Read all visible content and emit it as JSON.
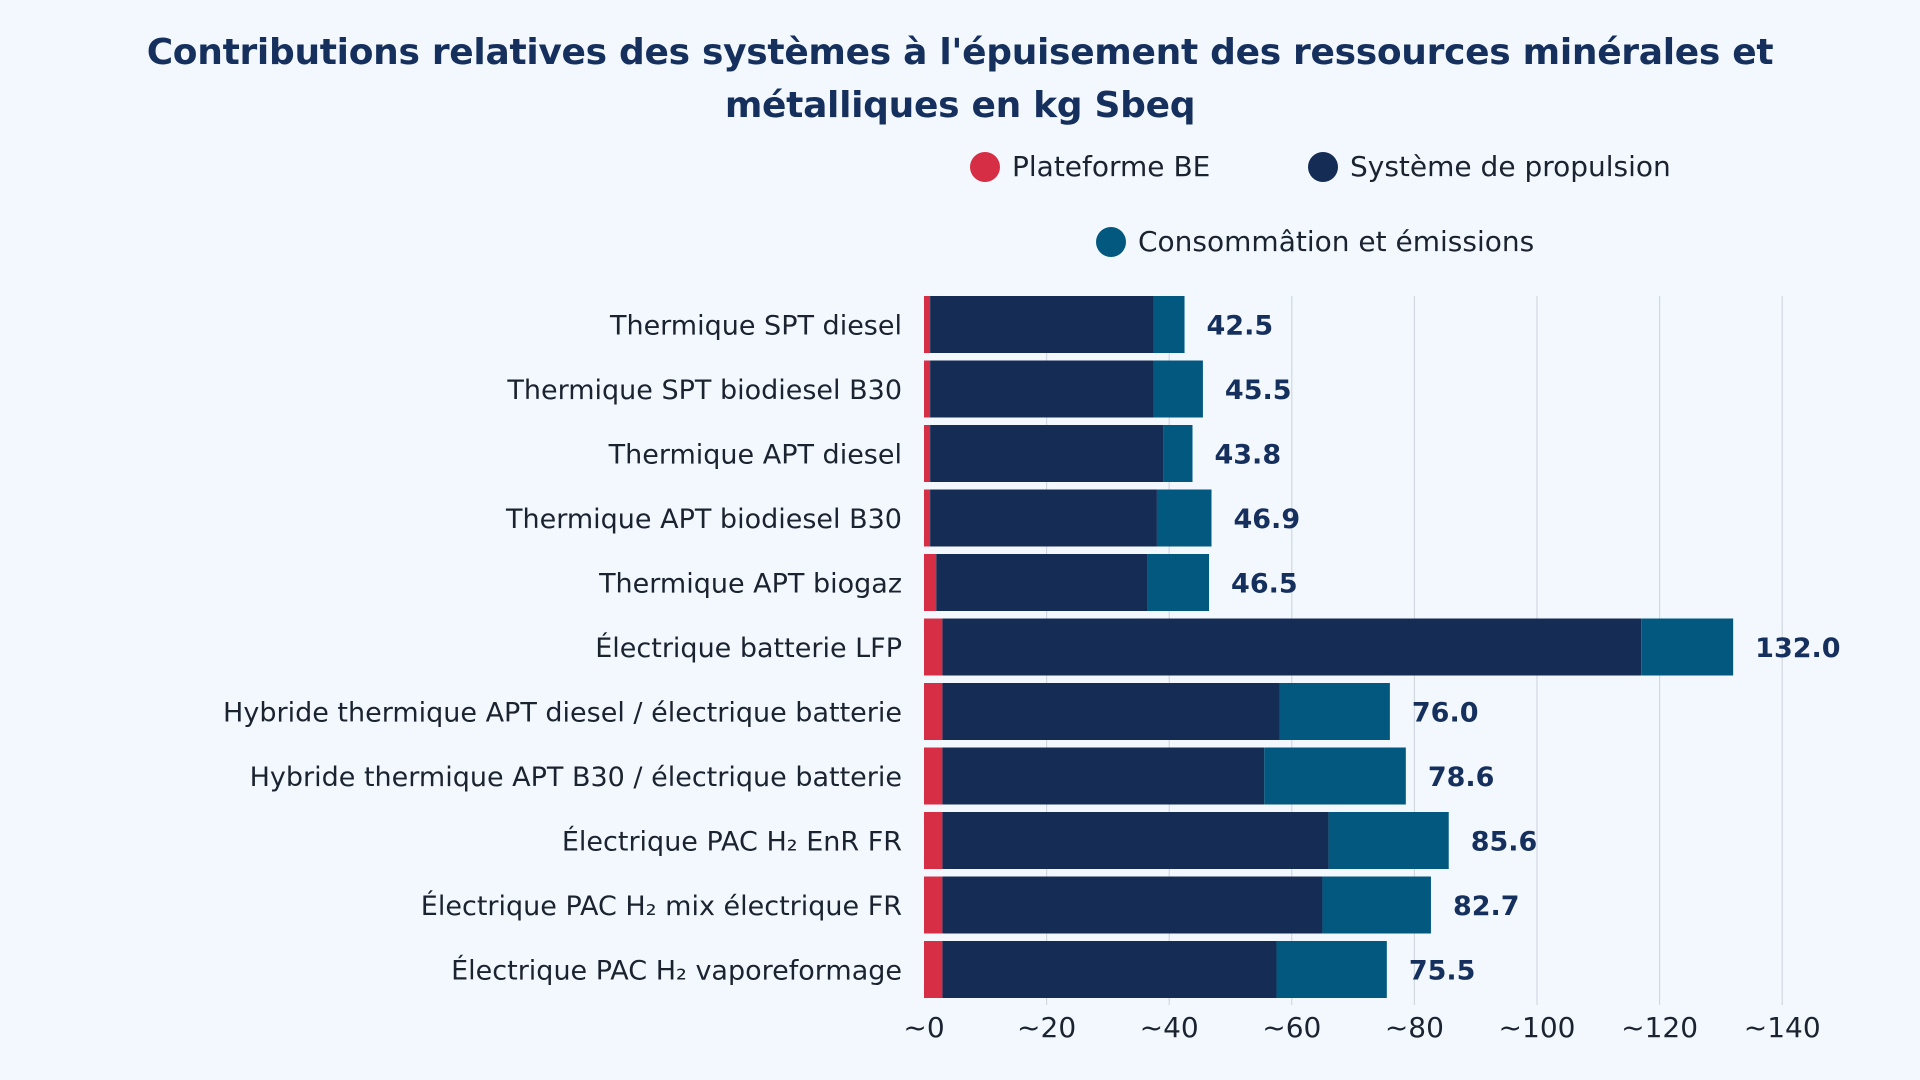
{
  "chart_data": {
    "type": "bar",
    "orientation": "horizontal",
    "stacked": true,
    "title": "Contributions relatives des systèmes à l'épuisement des ressources minérales et métalliques en kg Sbeq",
    "categories": [
      "Thermique SPT diesel",
      "Thermique SPT biodiesel B30",
      "Thermique APT diesel",
      "Thermique APT biodiesel B30",
      "Thermique APT biogaz",
      "Électrique batterie LFP",
      "Hybride thermique APT diesel / électrique batterie",
      "Hybride thermique APT B30 / électrique batterie",
      "Électrique PAC H₂ EnR FR",
      "Électrique PAC H₂ mix électrique FR",
      "Électrique PAC H₂ vaporeformage"
    ],
    "series": [
      {
        "name": "Plateforme BE",
        "color": "#d62f45",
        "values": [
          1.0,
          1.0,
          1.0,
          1.0,
          2.0,
          3.0,
          3.0,
          3.0,
          3.0,
          3.0,
          3.0
        ]
      },
      {
        "name": "Système de propulsion",
        "color": "#152c55",
        "values": [
          36.5,
          36.5,
          38.0,
          37.0,
          34.5,
          114.0,
          55.0,
          52.5,
          63.0,
          62.0,
          54.5
        ]
      },
      {
        "name": "Consommâtion et émissions",
        "color": "#03587f",
        "values": [
          5.0,
          8.0,
          4.8,
          8.9,
          10.0,
          15.0,
          18.0,
          23.1,
          19.6,
          17.7,
          18.0
        ]
      }
    ],
    "totals": [
      "42.5",
      "45.5",
      "43.8",
      "46.9",
      "46.5",
      "132.0",
      "76.0",
      "78.6",
      "85.6",
      "82.7",
      "75.5"
    ],
    "xlim": [
      0,
      140
    ],
    "xticks": [
      "~0",
      "~20",
      "~40",
      "~60",
      "~80",
      "~100",
      "~120",
      "~140"
    ],
    "grid": true,
    "legend_position": "top-right"
  }
}
